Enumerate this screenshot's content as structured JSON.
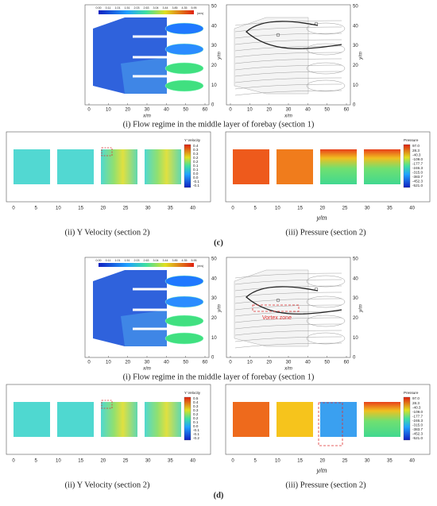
{
  "figure": {
    "panels": [
      {
        "label": "(c)",
        "flow": {
          "colorbar": [
            "0.00",
            "0.11",
            "1.01",
            "1.51",
            "2.03",
            "2.63",
            "3.04",
            "3.44",
            "3.85",
            "4.35",
            "5.95"
          ],
          "unit": "(m/s)",
          "xticks": [
            "0",
            "10",
            "20",
            "30",
            "40",
            "50",
            "60"
          ],
          "yticks": [
            "0",
            "10",
            "20",
            "30",
            "40",
            "50"
          ],
          "xlabel": "x/m",
          "ylabel": "y/m",
          "caption": "(i) Flow regime in the middle layer of forebay (section 1)"
        },
        "velocity": {
          "legend_title": "Y Velocity",
          "legend": [
            "0.4",
            "0.3",
            "0.3",
            "0.2",
            "0.2",
            "0.1",
            "0.1",
            "0.0",
            "0.0",
            "-0.1",
            "-0.1"
          ],
          "xticks": [
            "0",
            "5",
            "10",
            "15",
            "20",
            "25",
            "30",
            "35",
            "40"
          ],
          "caption": "(ii) Y Velocity (section 2)"
        },
        "pressure": {
          "legend_title": "Pressure",
          "legend": [
            "97.0",
            "28.3",
            "-40.3",
            "-109.0",
            "-177.7",
            "-246.3",
            "-315.0",
            "-383.7",
            "-452.3",
            "-521.0"
          ],
          "xticks": [
            "0",
            "5",
            "10",
            "15",
            "20",
            "25",
            "30",
            "35",
            "40"
          ],
          "xlabel": "y/m",
          "caption": "(iii) Pressure (section 2)"
        }
      },
      {
        "label": "(d)",
        "flow": {
          "colorbar": [
            "0.00",
            "0.11",
            "1.01",
            "1.51",
            "2.03",
            "2.63",
            "3.04",
            "3.44",
            "3.85",
            "4.35",
            "5.95"
          ],
          "unit": "(m/s)",
          "xticks": [
            "0",
            "10",
            "20",
            "30",
            "40",
            "50",
            "60"
          ],
          "yticks": [
            "0",
            "10",
            "20",
            "30",
            "40",
            "50"
          ],
          "xlabel": "x/m",
          "ylabel": "y/m",
          "caption": "(i) Flow regime in the middle layer of forebay (section 1)",
          "annotation": "Vortex zone"
        },
        "velocity": {
          "legend_title": "Y Velocity",
          "legend": [
            "0.5",
            "0.4",
            "0.3",
            "0.3",
            "0.2",
            "0.2",
            "0.1",
            "0.0",
            "-0.1",
            "-0.1",
            "-0.2"
          ],
          "xticks": [
            "0",
            "5",
            "10",
            "15",
            "20",
            "25",
            "30",
            "35",
            "40"
          ],
          "caption": "(ii) Y Velocity (section 2)"
        },
        "pressure": {
          "legend_title": "Pressure",
          "legend": [
            "97.0",
            "28.3",
            "-40.3",
            "-109.0",
            "-177.7",
            "-246.3",
            "-315.0",
            "-383.7",
            "-452.3",
            "-521.0"
          ],
          "xticks": [
            "0",
            "5",
            "10",
            "15",
            "20",
            "25",
            "30",
            "35",
            "40"
          ],
          "xlabel": "y/m",
          "caption": "(iii) Pressure (section 2)"
        }
      }
    ]
  }
}
